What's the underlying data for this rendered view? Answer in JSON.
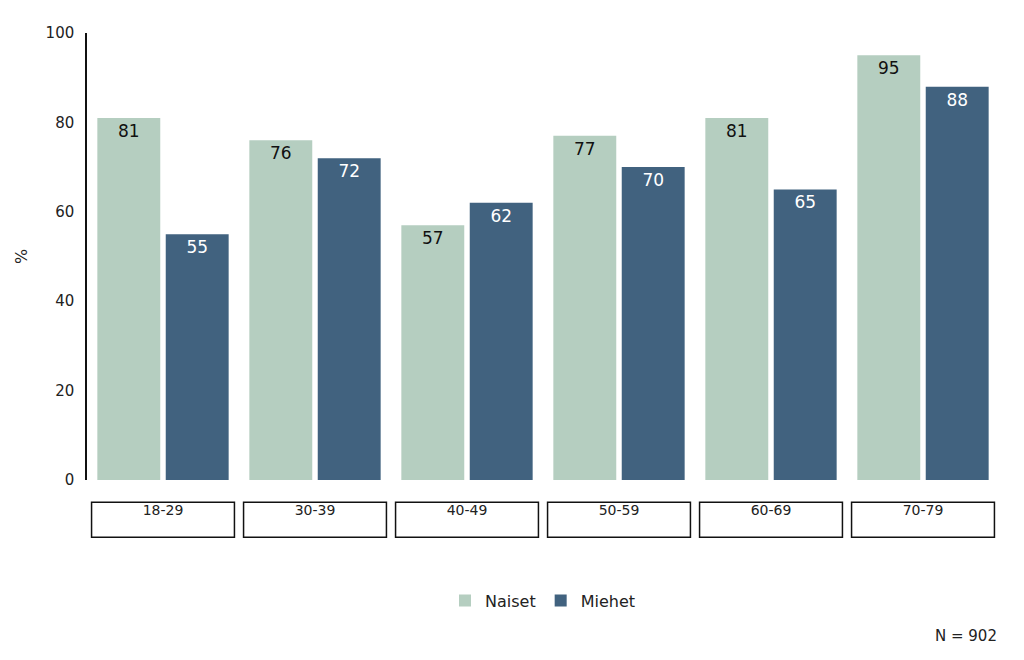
{
  "chart_data": {
    "type": "bar",
    "y_label": "%",
    "categories": [
      "18-29",
      "30-39",
      "40-49",
      "50-59",
      "60-69",
      "70-79"
    ],
    "series": [
      {
        "name": "Naiset",
        "color": "#b5cec0",
        "values": [
          81,
          76,
          57,
          77,
          81,
          95
        ]
      },
      {
        "name": "Miehet",
        "color": "#41627f",
        "values": [
          55,
          72,
          62,
          70,
          65,
          88
        ]
      }
    ],
    "ylim": [
      0,
      100
    ],
    "yticks": [
      0,
      20,
      40,
      60,
      80,
      100
    ],
    "grid": false,
    "legend": "bottom",
    "data_labels": true,
    "annotations": [
      "N = 902"
    ]
  }
}
